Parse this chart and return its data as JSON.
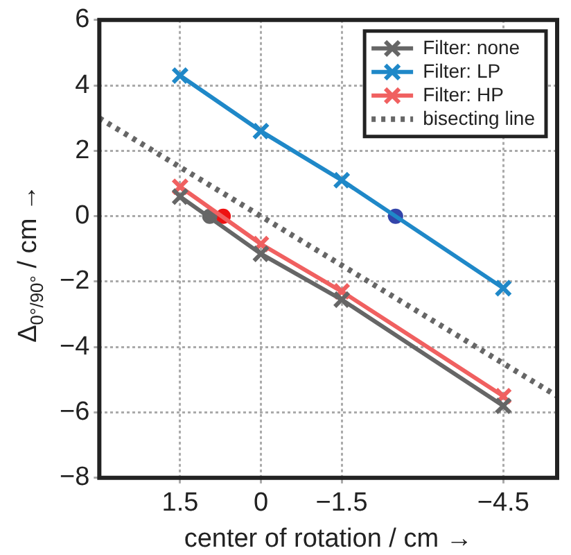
{
  "chart_data": {
    "type": "line",
    "xlabel": "center of rotation / cm →",
    "ylabel": "Δ$_{0°/90°}$ / cm →",
    "xlim": [
      3,
      -5.5
    ],
    "xticks": [
      1.5,
      0,
      -1.5,
      -4.5
    ],
    "ylim": [
      -8,
      6
    ],
    "yticks": [
      -8,
      -6,
      -4,
      -2,
      0,
      2,
      4,
      6
    ],
    "grid": true,
    "legend": "top right",
    "marker": "cross",
    "line_style": "solid",
    "series": [
      {
        "name": "Filter: none",
        "color": "#666666",
        "x": [
          1.5,
          0,
          -1.5,
          -4.5
        ],
        "values": [
          0.6,
          -1.15,
          -2.55,
          -5.8
        ]
      },
      {
        "name": "Filter: LP",
        "color": "#1f88c8",
        "x": [
          1.5,
          0,
          -1.5,
          -4.5
        ],
        "values": [
          4.3,
          2.6,
          1.1,
          -2.2
        ]
      },
      {
        "name": "Filter: HP",
        "color": "#f06060",
        "x": [
          1.5,
          0,
          -1.5,
          -4.5
        ],
        "values": [
          0.9,
          -0.85,
          -2.3,
          -5.5
        ]
      },
      {
        "name": "bisecting line",
        "color": "#666666",
        "x": [
          3,
          -5.5
        ],
        "values": [
          3,
          -5.5
        ],
        "line_style": "dotted",
        "marker": "none"
      },
      {
        "type": "scatter",
        "color": "#666666",
        "x": [
          0.95
        ],
        "values": [
          0
        ],
        "marker": "circle"
      },
      {
        "type": "scatter",
        "color": "#ee1111",
        "x": [
          0.7
        ],
        "values": [
          0
        ],
        "marker": "circle"
      },
      {
        "type": "scatter",
        "color": "#3344aa",
        "x": [
          -2.5
        ],
        "values": [
          0
        ],
        "marker": "circle"
      }
    ]
  }
}
